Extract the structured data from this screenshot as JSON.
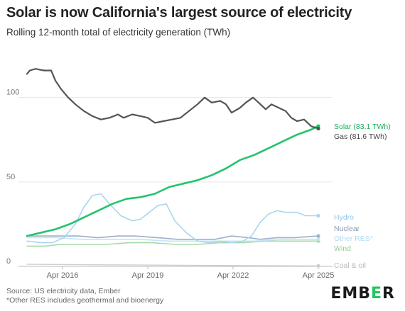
{
  "title": "Solar is now California's largest source of electricity",
  "subtitle": "Rolling 12-month total of electricity generation (TWh)",
  "source_line1": "Source: US electricity data, Ember",
  "source_line2": "*Other RES includes geothermal and bioenergy",
  "logo": {
    "pre": "EMB",
    "accent": "E",
    "post": "R"
  },
  "chart_data": {
    "type": "line",
    "ylim": [
      0,
      120
    ],
    "yticks": [
      0,
      50,
      100
    ],
    "xlim": [
      2015.0,
      2025.5
    ],
    "xticks": [
      {
        "label": "Apr 2016",
        "x": 2016.25
      },
      {
        "label": "Apr 2019",
        "x": 2019.25
      },
      {
        "label": "Apr 2022",
        "x": 2022.25
      },
      {
        "label": "Apr 2025",
        "x": 2025.25
      }
    ],
    "series": [
      {
        "name": "Gas",
        "end_label": "Gas (81.6 TWh)",
        "color": "#555555",
        "width": 2.2,
        "x": [
          2015.0,
          2015.1,
          2015.3,
          2015.6,
          2015.85,
          2016.0,
          2016.2,
          2016.45,
          2016.7,
          2017.0,
          2017.3,
          2017.6,
          2017.9,
          2018.2,
          2018.4,
          2018.7,
          2019.0,
          2019.25,
          2019.5,
          2019.8,
          2020.1,
          2020.4,
          2020.7,
          2021.0,
          2021.25,
          2021.5,
          2021.8,
          2022.0,
          2022.2,
          2022.5,
          2022.7,
          2022.95,
          2023.15,
          2023.4,
          2023.6,
          2023.85,
          2024.1,
          2024.3,
          2024.5,
          2024.75,
          2025.0,
          2025.25
        ],
        "y": [
          114,
          116,
          117,
          116,
          116,
          110,
          105,
          100,
          96,
          92,
          89,
          87,
          88,
          90,
          88,
          90,
          89,
          88,
          85,
          86,
          87,
          88,
          92,
          96,
          100,
          97,
          98,
          96,
          91,
          94,
          97,
          100,
          97,
          93,
          96,
          94,
          92,
          88,
          86,
          87,
          83,
          81.6
        ]
      },
      {
        "name": "Solar",
        "end_label": "Solar (83.1 TWh)",
        "color": "#25c26e",
        "width": 2.6,
        "x": [
          2015.0,
          2015.5,
          2016.0,
          2016.5,
          2017.0,
          2017.5,
          2018.0,
          2018.5,
          2019.0,
          2019.5,
          2020.0,
          2020.5,
          2021.0,
          2021.5,
          2022.0,
          2022.5,
          2023.0,
          2023.5,
          2024.0,
          2024.5,
          2025.0,
          2025.25
        ],
        "y": [
          18,
          20,
          22,
          25,
          29,
          33,
          37,
          40,
          41,
          43,
          47,
          49,
          51,
          54,
          58,
          63,
          66,
          70,
          74,
          78,
          81,
          83.1
        ]
      },
      {
        "name": "Hydro",
        "end_label": "Hydro",
        "color": "#a9d6f0",
        "width": 1.6,
        "x": [
          2015.0,
          2015.5,
          2015.9,
          2016.3,
          2016.7,
          2017.0,
          2017.3,
          2017.6,
          2017.9,
          2018.3,
          2018.7,
          2019.0,
          2019.3,
          2019.6,
          2019.9,
          2020.2,
          2020.6,
          2021.0,
          2021.4,
          2021.8,
          2022.2,
          2022.6,
          2022.9,
          2023.2,
          2023.5,
          2023.8,
          2024.1,
          2024.5,
          2024.8,
          2025.25
        ],
        "y": [
          15,
          14,
          14,
          17,
          25,
          35,
          42,
          43,
          37,
          30,
          27,
          28,
          32,
          36,
          37,
          27,
          20,
          15,
          14,
          15,
          14,
          15,
          18,
          26,
          31,
          33,
          32,
          32,
          30,
          30
        ]
      },
      {
        "name": "Nuclear",
        "end_label": "Nuclear",
        "color": "#a3b4cc",
        "width": 1.8,
        "x": [
          2015.0,
          2016.0,
          2016.8,
          2017.5,
          2018.2,
          2018.8,
          2019.6,
          2020.3,
          2021.0,
          2021.6,
          2022.2,
          2022.8,
          2023.2,
          2023.8,
          2024.4,
          2025.25
        ],
        "y": [
          18,
          18,
          18,
          17,
          18,
          18,
          17,
          16,
          16,
          16,
          18,
          17,
          16,
          17,
          17,
          18
        ]
      },
      {
        "name": "Other RES*",
        "end_label": "Other RES*",
        "color": "#c4e4f5",
        "width": 1.6,
        "x": [
          2015.0,
          2016.0,
          2017.0,
          2018.0,
          2019.0,
          2020.0,
          2021.0,
          2022.0,
          2023.0,
          2024.0,
          2025.25
        ],
        "y": [
          17,
          17,
          16,
          16,
          16,
          15,
          15,
          15,
          15,
          16,
          16
        ]
      },
      {
        "name": "Wind",
        "end_label": "Wind",
        "color": "#a7d9a9",
        "width": 1.6,
        "x": [
          2015.0,
          2015.6,
          2016.2,
          2017.0,
          2017.8,
          2018.6,
          2019.4,
          2020.2,
          2021.0,
          2021.8,
          2022.6,
          2023.4,
          2024.2,
          2025.25
        ],
        "y": [
          12,
          12,
          13,
          13,
          13,
          14,
          14,
          13,
          13,
          14,
          14,
          15,
          15,
          15
        ]
      },
      {
        "name": "Coal & oil",
        "end_label": "Coal & oil",
        "color": "#cfcfcf",
        "width": 1.4,
        "x": [
          2015.0,
          2017.0,
          2019.0,
          2021.0,
          2023.0,
          2025.25
        ],
        "y": [
          1.2,
          1.0,
          0.8,
          0.6,
          0.4,
          0.3
        ]
      }
    ]
  }
}
